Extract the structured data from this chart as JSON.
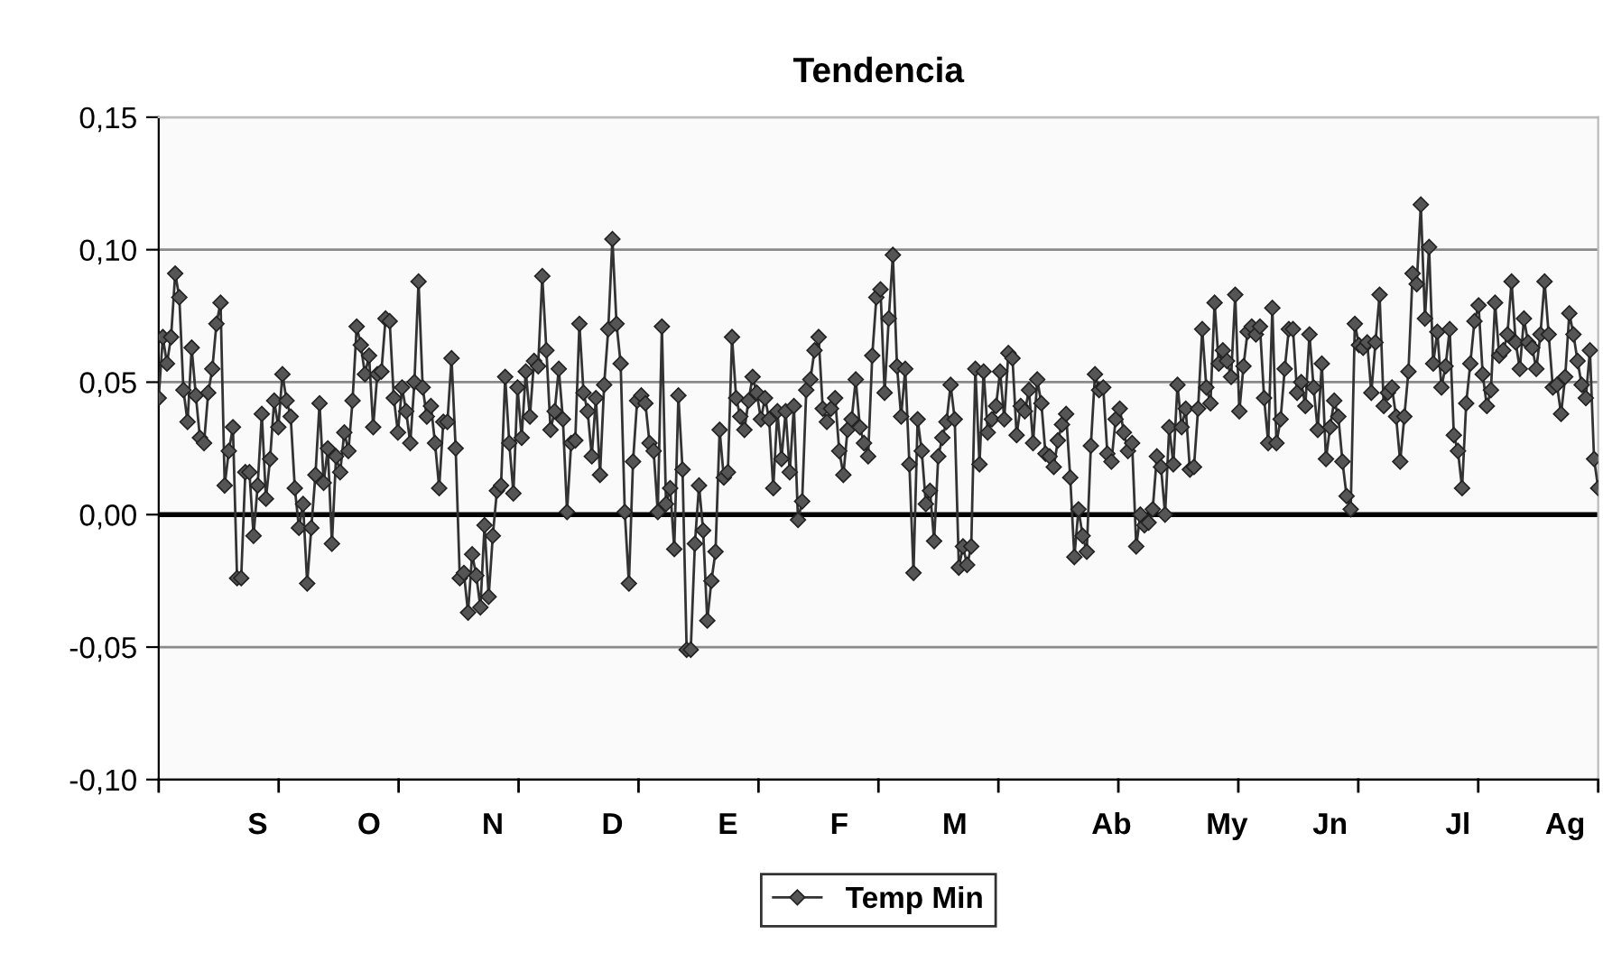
{
  "chart_data": {
    "type": "line",
    "title": "Tendencia",
    "categories": [
      null,
      null,
      null,
      null,
      null,
      null,
      null,
      null,
      null,
      null,
      null,
      null,
      null,
      null,
      null,
      null,
      null,
      null,
      null,
      null,
      null,
      null,
      null,
      null,
      "S",
      null,
      null,
      null,
      null,
      null,
      null,
      null,
      null,
      null,
      null,
      null,
      null,
      null,
      null,
      null,
      null,
      null,
      null,
      null,
      null,
      null,
      null,
      null,
      null,
      null,
      null,
      "O",
      null,
      null,
      null,
      null,
      null,
      null,
      null,
      null,
      null,
      null,
      null,
      null,
      null,
      null,
      null,
      null,
      null,
      null,
      null,
      null,
      null,
      null,
      null,
      null,
      null,
      null,
      null,
      null,
      null,
      "N",
      null,
      null,
      null,
      null,
      null,
      null,
      null,
      null,
      null,
      null,
      null,
      null,
      null,
      null,
      null,
      null,
      null,
      null,
      null,
      null,
      null,
      null,
      null,
      null,
      null,
      null,
      null,
      null,
      "D",
      null,
      null,
      null,
      null,
      null,
      null,
      null,
      null,
      null,
      null,
      null,
      null,
      null,
      null,
      null,
      null,
      null,
      null,
      null,
      null,
      null,
      null,
      null,
      null,
      null,
      null,
      null,
      "E",
      null,
      null,
      null,
      null,
      null,
      null,
      null,
      null,
      null,
      null,
      null,
      null,
      null,
      null,
      null,
      null,
      null,
      null,
      null,
      null,
      null,
      null,
      null,
      null,
      null,
      null,
      "F",
      null,
      null,
      null,
      null,
      null,
      null,
      null,
      null,
      null,
      null,
      null,
      null,
      null,
      null,
      null,
      null,
      null,
      null,
      null,
      null,
      null,
      null,
      null,
      null,
      null,
      null,
      null,
      "M",
      null,
      null,
      null,
      null,
      null,
      null,
      null,
      null,
      null,
      null,
      null,
      null,
      null,
      null,
      null,
      null,
      null,
      null,
      null,
      null,
      null,
      null,
      null,
      null,
      null,
      null,
      null,
      null,
      null,
      null,
      null,
      null,
      null,
      null,
      null,
      null,
      null,
      "Ab",
      null,
      null,
      null,
      null,
      null,
      null,
      null,
      null,
      null,
      null,
      null,
      null,
      null,
      null,
      null,
      null,
      null,
      null,
      null,
      null,
      null,
      null,
      null,
      null,
      null,
      null,
      null,
      "My",
      null,
      null,
      null,
      null,
      null,
      null,
      null,
      null,
      null,
      null,
      null,
      null,
      null,
      null,
      null,
      null,
      null,
      null,
      null,
      null,
      null,
      null,
      null,
      null,
      "Jn",
      null,
      null,
      null,
      null,
      null,
      null,
      null,
      null,
      null,
      null,
      null,
      null,
      null,
      null,
      null,
      null,
      null,
      null,
      null,
      null,
      null,
      null,
      null,
      null,
      null,
      null,
      null,
      null,
      null,
      null,
      "Jl",
      null,
      null,
      null,
      null,
      null,
      null,
      null,
      null,
      null,
      null,
      null,
      null,
      null,
      null,
      null,
      null,
      null,
      null,
      null,
      null,
      null,
      null,
      null,
      null,
      null,
      "Ag",
      null,
      null,
      null,
      null,
      null,
      null,
      null,
      null
    ],
    "series": [
      {
        "name": "Temp Min",
        "color": "#555555",
        "values": [
          0.044,
          0.067,
          0.057,
          0.067,
          0.091,
          0.082,
          0.047,
          0.035,
          0.063,
          0.045,
          0.029,
          0.027,
          0.046,
          0.055,
          0.072,
          0.08,
          0.011,
          0.024,
          0.033,
          -0.024,
          -0.024,
          0.016,
          0.016,
          -0.008,
          0.011,
          0.038,
          0.006,
          0.021,
          0.043,
          0.033,
          0.053,
          0.043,
          0.037,
          0.01,
          -0.005,
          0.004,
          -0.026,
          -0.005,
          0.015,
          0.042,
          0.012,
          0.025,
          -0.011,
          0.022,
          0.016,
          0.031,
          0.024,
          0.043,
          0.071,
          0.064,
          0.053,
          0.06,
          0.033,
          0.053,
          0.054,
          0.074,
          0.073,
          0.044,
          0.031,
          0.048,
          0.039,
          0.027,
          0.05,
          0.088,
          0.048,
          0.037,
          0.041,
          0.027,
          0.01,
          0.035,
          0.035,
          0.059,
          0.025,
          -0.024,
          -0.022,
          -0.037,
          -0.015,
          -0.023,
          -0.035,
          -0.004,
          -0.031,
          -0.008,
          0.009,
          0.011,
          0.052,
          0.027,
          0.008,
          0.048,
          0.029,
          0.054,
          0.037,
          0.058,
          0.056,
          0.09,
          0.062,
          0.032,
          0.039,
          0.055,
          0.036,
          0.001,
          0.027,
          0.028,
          0.072,
          0.046,
          0.039,
          0.022,
          0.044,
          0.015,
          0.049,
          0.07,
          0.104,
          0.072,
          0.057,
          0.001,
          -0.026,
          0.02,
          0.043,
          0.045,
          0.042,
          0.027,
          0.024,
          0.001,
          0.071,
          0.004,
          0.01,
          -0.013,
          0.045,
          0.017,
          -0.051,
          -0.051,
          -0.011,
          0.011,
          -0.006,
          -0.04,
          -0.025,
          -0.014,
          0.032,
          0.014,
          0.016,
          0.067,
          0.044,
          0.037,
          0.032,
          0.043,
          0.052,
          0.046,
          0.036,
          0.044,
          0.036,
          0.01,
          0.039,
          0.021,
          0.039,
          0.016,
          0.041,
          -0.002,
          0.005,
          0.047,
          0.051,
          0.062,
          0.067,
          0.04,
          0.035,
          0.04,
          0.044,
          0.024,
          0.015,
          0.032,
          0.036,
          0.051,
          0.033,
          0.027,
          0.022,
          0.06,
          0.082,
          0.085,
          0.046,
          0.074,
          0.098,
          0.056,
          0.037,
          0.055,
          0.019,
          -0.022,
          0.036,
          0.024,
          0.004,
          0.009,
          -0.01,
          0.022,
          0.029,
          0.035,
          0.049,
          0.036,
          -0.02,
          -0.012,
          -0.019,
          -0.012,
          0.055,
          0.019,
          0.054,
          0.031,
          0.036,
          0.041,
          0.054,
          0.036,
          0.061,
          0.059,
          0.03,
          0.041,
          0.039,
          0.047,
          0.027,
          0.051,
          0.042,
          0.023,
          0.022,
          0.018,
          0.028,
          0.034,
          0.038,
          0.014,
          -0.016,
          0.002,
          -0.008,
          -0.014,
          0.026,
          0.053,
          0.047,
          0.048,
          0.023,
          0.02,
          0.036,
          0.04,
          0.031,
          0.024,
          0.027,
          -0.012,
          0.0,
          -0.004,
          -0.003,
          0.002,
          0.022,
          0.018,
          0.0,
          0.033,
          0.019,
          0.049,
          0.033,
          0.04,
          0.017,
          0.018,
          0.04,
          0.07,
          0.048,
          0.042,
          0.08,
          0.057,
          0.062,
          0.058,
          0.052,
          0.083,
          0.039,
          0.056,
          0.069,
          0.071,
          0.068,
          0.071,
          0.044,
          0.027,
          0.078,
          0.027,
          0.036,
          0.055,
          0.07,
          0.07,
          0.046,
          0.05,
          0.041,
          0.068,
          0.048,
          0.032,
          0.057,
          0.021,
          0.033,
          0.043,
          0.037,
          0.02,
          0.007,
          0.002,
          0.072,
          0.064,
          0.063,
          0.065,
          0.046,
          0.065,
          0.083,
          0.041,
          0.046,
          0.048,
          0.037,
          0.02,
          0.037,
          0.054,
          0.091,
          0.087,
          0.117,
          0.074,
          0.101,
          0.057,
          0.069,
          0.048,
          0.056,
          0.07,
          0.03,
          0.024,
          0.01,
          0.042,
          0.057,
          0.073,
          0.079,
          0.053,
          0.041,
          0.047,
          0.08,
          0.06,
          0.062,
          0.068,
          0.088,
          0.065,
          0.055,
          0.074,
          0.065,
          0.063,
          0.055,
          0.068,
          0.088,
          0.068,
          0.048,
          0.049,
          0.038,
          0.052,
          0.076,
          0.068,
          0.058,
          0.049,
          0.044,
          0.062,
          0.021,
          0.01
        ]
      }
    ],
    "ylim": [
      -0.1,
      0.15
    ],
    "yticks": [
      {
        "value": -0.1,
        "label": "-0,10"
      },
      {
        "value": -0.05,
        "label": "-0,05"
      },
      {
        "value": 0,
        "label": "0,00"
      },
      {
        "value": 0.05,
        "label": "0,05"
      },
      {
        "value": 0.1,
        "label": "0,10"
      },
      {
        "value": 0.15,
        "label": "0,15"
      }
    ],
    "ref_lines": [
      {
        "axis": "y",
        "value": 0,
        "color": "#000000"
      }
    ],
    "grid": "y",
    "legend": "bottom",
    "marker": "diamond",
    "line_style": "solid"
  }
}
